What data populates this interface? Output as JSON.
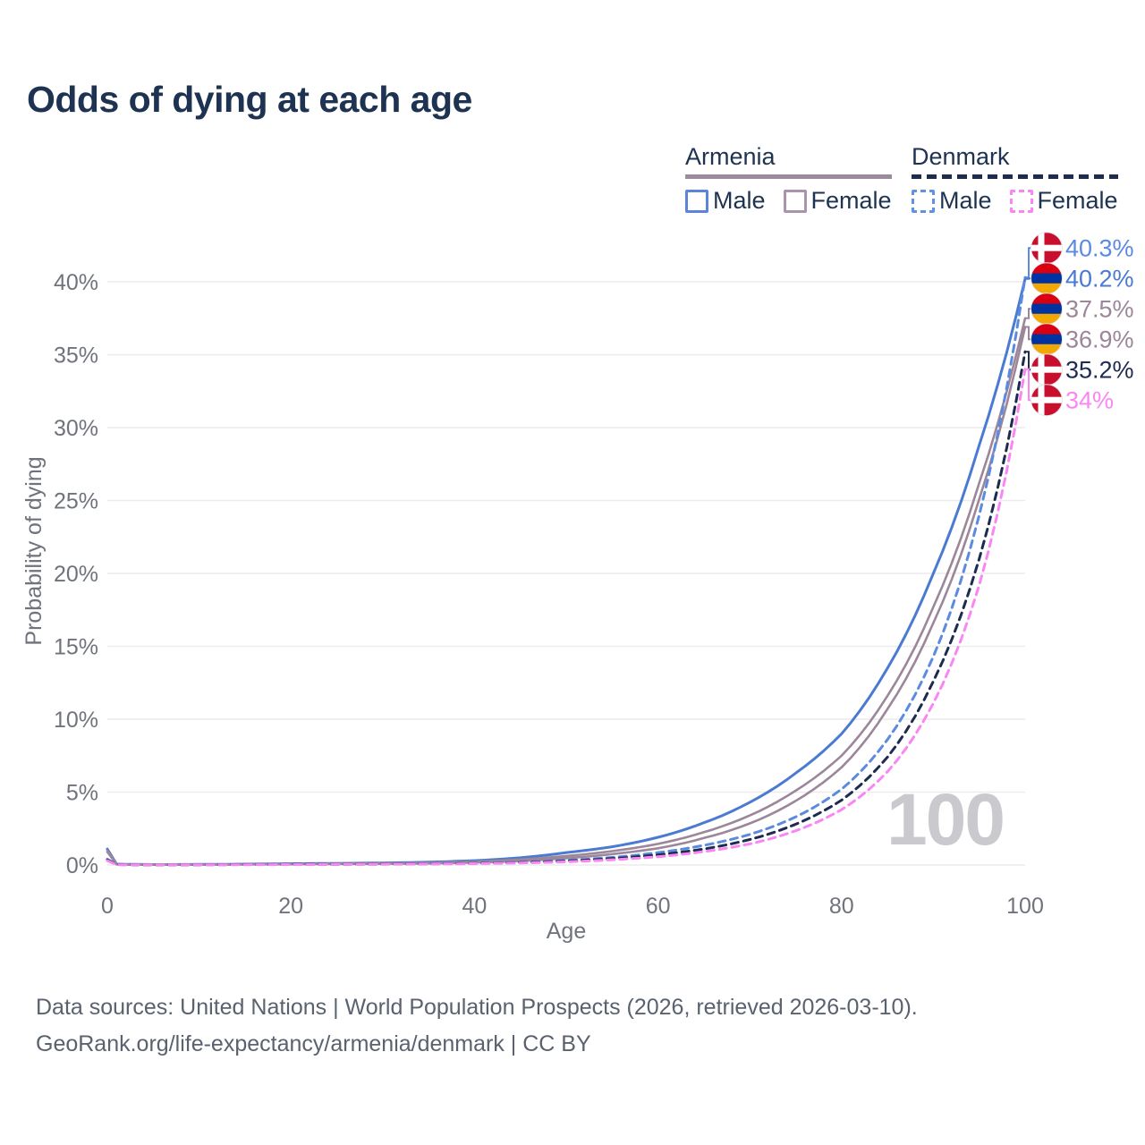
{
  "page": {
    "title": "Odds of dying at each age"
  },
  "legend": {
    "groups": [
      {
        "title": "Armenia",
        "line_style": "solid",
        "color": "#9b8b9b",
        "items": [
          {
            "label": "Male",
            "color": "#5b84da"
          },
          {
            "label": "Female",
            "color": "#ab93ab"
          }
        ]
      },
      {
        "title": "Denmark",
        "line_style": "dashed",
        "color": "#1d2c4e",
        "items": [
          {
            "label": "Male",
            "color": "#6290e2"
          },
          {
            "label": "Female",
            "color": "#fa86f3"
          }
        ]
      }
    ]
  },
  "chart_data": {
    "type": "line",
    "title": "Odds of dying at each age",
    "xlabel": "Age",
    "ylabel": "Probability of dying",
    "xlim": [
      0,
      100
    ],
    "ylim": [
      0,
      43
    ],
    "x_ticks": [
      0,
      20,
      40,
      60,
      80,
      100
    ],
    "y_ticks": [
      0,
      5,
      10,
      15,
      20,
      25,
      30,
      35,
      40
    ],
    "y_tick_suffix": "%",
    "grid": "horizontal",
    "legend_position": "top-right",
    "watermark": "100",
    "x": [
      0,
      1,
      5,
      10,
      15,
      20,
      25,
      30,
      35,
      40,
      45,
      50,
      55,
      60,
      65,
      70,
      75,
      80,
      85,
      90,
      95,
      100
    ],
    "series": [
      {
        "id": "armenia-male",
        "name": "Armenia Male",
        "flag": "armenia",
        "color": "#4a7ad1",
        "dashed": false,
        "end_label": "40.2%",
        "values": [
          1.1,
          0.06,
          0.03,
          0.04,
          0.06,
          0.09,
          0.11,
          0.14,
          0.2,
          0.3,
          0.5,
          0.85,
          1.25,
          1.9,
          2.9,
          4.3,
          6.3,
          9.0,
          13.5,
          20.0,
          28.8,
          40.2
        ]
      },
      {
        "id": "armenia",
        "name": "Armenia",
        "flag": "armenia",
        "color": "#9c8699",
        "dashed": false,
        "end_label": "37.5%",
        "values": [
          1.0,
          0.05,
          0.03,
          0.03,
          0.05,
          0.07,
          0.09,
          0.11,
          0.15,
          0.23,
          0.38,
          0.62,
          0.95,
          1.45,
          2.25,
          3.4,
          5.1,
          7.5,
          11.6,
          17.7,
          26.2,
          37.5
        ]
      },
      {
        "id": "armenia-female",
        "name": "Armenia Female",
        "flag": "armenia",
        "color": "#9c8699",
        "dashed": false,
        "end_label": "36.9%",
        "values": [
          0.9,
          0.05,
          0.02,
          0.03,
          0.04,
          0.05,
          0.07,
          0.08,
          0.11,
          0.17,
          0.28,
          0.47,
          0.75,
          1.15,
          1.85,
          2.85,
          4.4,
          6.7,
          10.7,
          16.6,
          25.1,
          36.9
        ]
      },
      {
        "id": "denmark-male",
        "name": "Denmark Male",
        "flag": "denmark",
        "color": "#5b8be0",
        "dashed": true,
        "end_label": "40.3%",
        "values": [
          0.4,
          0.03,
          0.01,
          0.02,
          0.03,
          0.05,
          0.06,
          0.07,
          0.09,
          0.13,
          0.2,
          0.32,
          0.52,
          0.85,
          1.35,
          2.1,
          3.3,
          5.2,
          8.6,
          14.3,
          24.0,
          40.3
        ]
      },
      {
        "id": "denmark",
        "name": "Denmark",
        "flag": "denmark",
        "color": "#1d2c4e",
        "dashed": true,
        "end_label": "35.2%",
        "values": [
          0.35,
          0.03,
          0.01,
          0.02,
          0.03,
          0.04,
          0.05,
          0.06,
          0.08,
          0.11,
          0.17,
          0.27,
          0.44,
          0.7,
          1.1,
          1.75,
          2.8,
          4.45,
          7.4,
          12.6,
          21.0,
          35.2
        ]
      },
      {
        "id": "denmark-female",
        "name": "Denmark Female",
        "flag": "denmark",
        "color": "#fa86f3",
        "dashed": true,
        "end_label": "34%",
        "values": [
          0.3,
          0.02,
          0.01,
          0.01,
          0.02,
          0.03,
          0.04,
          0.05,
          0.07,
          0.09,
          0.14,
          0.22,
          0.36,
          0.57,
          0.92,
          1.45,
          2.35,
          3.8,
          6.4,
          11.1,
          19.2,
          34.0
        ]
      }
    ],
    "flag_colors": {
      "armenia": [
        "#D90012",
        "#0033A0",
        "#F2A800"
      ],
      "denmark_bg": "#C8102E",
      "denmark_cross": "#FFFFFF"
    }
  },
  "style": {
    "title_color": "#1e3251",
    "axis_text_color": "#6f737c",
    "gridline_color": "#ececee",
    "watermark_color": "#c9c9ce",
    "footer_color": "#5a626f"
  },
  "footer": {
    "line1": "Data sources: United Nations | World Population Prospects (2026, retrieved 2026-03-10).",
    "line2": "GeoRank.org/life-expectancy/armenia/denmark | CC BY"
  }
}
